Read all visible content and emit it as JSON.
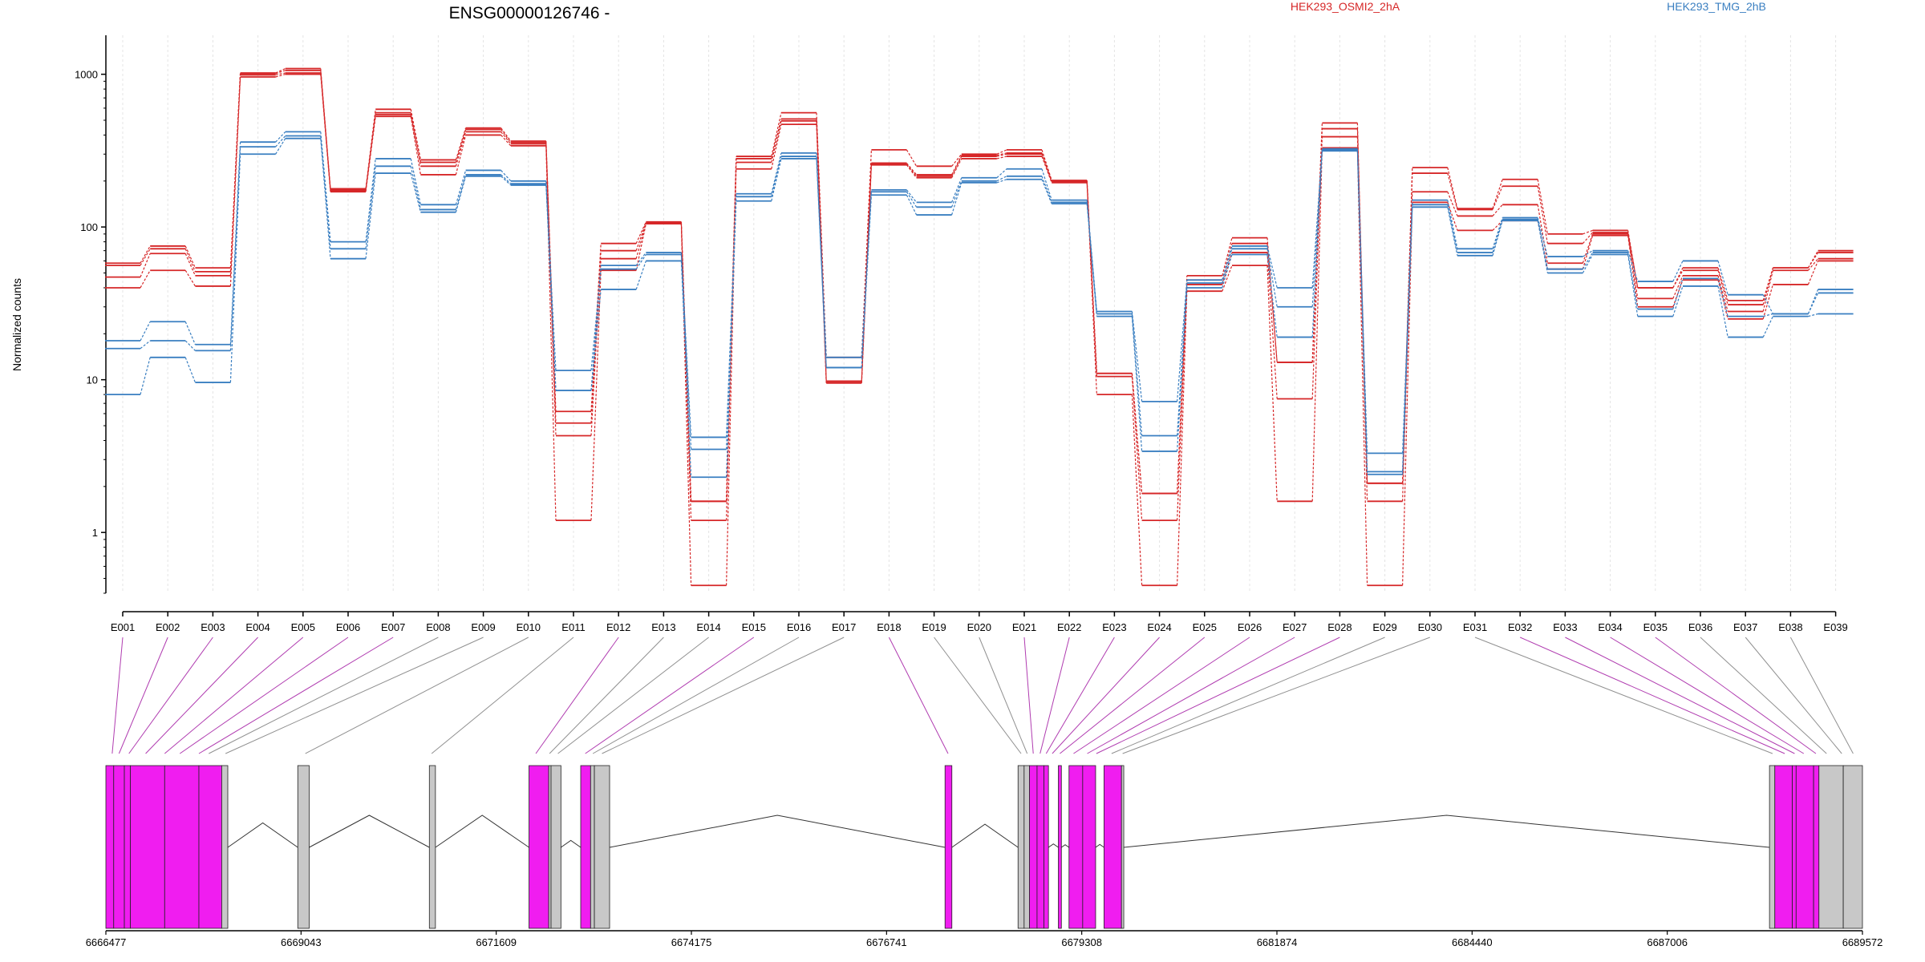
{
  "chart_data": {
    "type": "line",
    "title": "ENSG00000126746 -",
    "ylabel": "Normalized counts",
    "xlabel": "",
    "yscale": "log",
    "ylim": [
      0.4,
      1800
    ],
    "yticks": [
      1,
      10,
      100,
      1000
    ],
    "grid": true,
    "legend_placement": "top",
    "exons": [
      "E001",
      "E002",
      "E003",
      "E004",
      "E005",
      "E006",
      "E007",
      "E008",
      "E009",
      "E010",
      "E011",
      "E012",
      "E013",
      "E014",
      "E015",
      "E016",
      "E017",
      "E018",
      "E019",
      "E020",
      "E021",
      "E022",
      "E023",
      "E024",
      "E025",
      "E026",
      "E027",
      "E028",
      "E029",
      "E030",
      "E031",
      "E032",
      "E033",
      "E034",
      "E035",
      "E036",
      "E037",
      "E038",
      "E039"
    ],
    "groups": [
      {
        "name": "HEK293_OSMI2_2hA",
        "color": "#d62728"
      },
      {
        "name": "HEK293_TMG_2hB",
        "color": "#3a7fc1"
      }
    ],
    "series": [
      {
        "group": 0,
        "values": [
          40,
          52,
          41,
          960,
          1000,
          170,
          530,
          220,
          400,
          340,
          1.2,
          52,
          105,
          0.45,
          240,
          470,
          9.5,
          255,
          210,
          280,
          290,
          195,
          8,
          0.45,
          38,
          56,
          1.6,
          330,
          0.45,
          145,
          95,
          110,
          53,
          88,
          30,
          45,
          25,
          42,
          60
        ]
      },
      {
        "group": 0,
        "values": [
          47,
          67,
          48,
          990,
          1020,
          172,
          545,
          250,
          420,
          350,
          4.3,
          62,
          106,
          1.2,
          265,
          495,
          9.6,
          258,
          215,
          290,
          300,
          198,
          10.5,
          1.2,
          42,
          68,
          7.5,
          390,
          1.6,
          170,
          118,
          140,
          58,
          90,
          34,
          48,
          28,
          52,
          62
        ]
      },
      {
        "group": 0,
        "values": [
          56,
          72,
          51,
          1010,
          1060,
          175,
          560,
          265,
          435,
          358,
          5.2,
          70,
          107,
          1.6,
          280,
          510,
          9.8,
          262,
          220,
          295,
          305,
          200,
          11,
          1.8,
          45,
          78,
          13,
          440,
          2.1,
          225,
          130,
          185,
          78,
          92,
          40,
          52,
          31,
          54,
          68
        ]
      },
      {
        "group": 0,
        "values": [
          58,
          75,
          54,
          1020,
          1090,
          178,
          590,
          275,
          445,
          365,
          6.2,
          78,
          108,
          1.6,
          290,
          560,
          14,
          320,
          250,
          300,
          320,
          202,
          11,
          1.8,
          48,
          85,
          13,
          480,
          2.1,
          245,
          132,
          205,
          90,
          95,
          40,
          54,
          33,
          54,
          70
        ]
      },
      {
        "group": 1,
        "values": [
          8,
          14,
          9.6,
          300,
          380,
          62,
          225,
          125,
          215,
          188,
          8.5,
          39,
          60,
          2.3,
          148,
          280,
          12,
          162,
          120,
          195,
          205,
          142,
          26,
          3.4,
          40,
          66,
          19,
          315,
          2.5,
          135,
          65,
          110,
          50,
          66,
          26,
          41,
          19,
          26,
          27
        ]
      },
      {
        "group": 1,
        "values": [
          16,
          18,
          15.5,
          335,
          395,
          72,
          250,
          130,
          220,
          192,
          11.5,
          53,
          66,
          3.5,
          158,
          290,
          12,
          170,
          135,
          200,
          215,
          145,
          27,
          4.3,
          43,
          72,
          30,
          320,
          2.4,
          140,
          68,
          112,
          53,
          68,
          29,
          46,
          26,
          27,
          37
        ]
      },
      {
        "group": 1,
        "values": [
          18,
          24,
          17,
          360,
          420,
          80,
          280,
          140,
          235,
          200,
          8.5,
          56,
          68,
          4.2,
          165,
          305,
          14,
          175,
          145,
          210,
          240,
          150,
          28,
          7.2,
          45,
          75,
          40,
          325,
          3.3,
          150,
          72,
          115,
          64,
          70,
          44,
          60,
          36,
          27,
          39
        ]
      }
    ],
    "genome": {
      "axis_ticks": [
        "6666477",
        "6669043",
        "6671609",
        "6674175",
        "6676741",
        "6679308",
        "6681874",
        "6684440",
        "6687006",
        "6689572"
      ],
      "range": [
        6666477,
        6689572
      ],
      "feature_colors": {
        "counted": "#f01df0",
        "not_counted": "#c8c8c8"
      },
      "connector_colors": {
        "counted": "#b03cb0",
        "not_counted": "#909090"
      },
      "features": [
        {
          "start": 6666477,
          "end": 6666580,
          "counted": true,
          "exon": 0
        },
        {
          "start": 6666580,
          "end": 6666720,
          "counted": true,
          "exon": 1
        },
        {
          "start": 6666720,
          "end": 6666800,
          "counted": true,
          "exon": 2
        },
        {
          "start": 6666800,
          "end": 6667250,
          "counted": true,
          "exon": 3
        },
        {
          "start": 6667250,
          "end": 6667700,
          "counted": true,
          "exon": 4
        },
        {
          "start": 6667700,
          "end": 6668000,
          "counted": true,
          "exon": 5
        },
        {
          "start": 6668000,
          "end": 6668080,
          "counted": false,
          "exon": 6
        },
        {
          "start": 6669000,
          "end": 6669150,
          "counted": false,
          "exon": 7
        },
        {
          "start": 6670730,
          "end": 6670810,
          "counted": false,
          "exon": 8
        },
        {
          "start": 6672040,
          "end": 6672300,
          "counted": true,
          "exon": 9
        },
        {
          "start": 6672300,
          "end": 6672330,
          "counted": false,
          "exon": 10
        },
        {
          "start": 6672330,
          "end": 6672460,
          "counted": false,
          "exon": 11
        },
        {
          "start": 6672720,
          "end": 6672850,
          "counted": true,
          "exon": 12
        },
        {
          "start": 6672850,
          "end": 6672900,
          "counted": false,
          "exon": 13
        },
        {
          "start": 6672900,
          "end": 6673100,
          "counted": false,
          "exon": 14
        },
        {
          "start": 6677510,
          "end": 6677600,
          "counted": true,
          "exon": 16
        },
        {
          "start": 6678470,
          "end": 6678550,
          "counted": false,
          "exon": 17
        },
        {
          "start": 6678550,
          "end": 6678620,
          "counted": false,
          "exon": 18
        },
        {
          "start": 6678620,
          "end": 6678720,
          "counted": true,
          "exon": 19
        },
        {
          "start": 6678720,
          "end": 6678810,
          "counted": true,
          "exon": 20
        },
        {
          "start": 6678810,
          "end": 6678870,
          "counted": true,
          "exon": 21
        },
        {
          "start": 6679000,
          "end": 6679040,
          "counted": true,
          "exon": 22
        },
        {
          "start": 6679140,
          "end": 6679320,
          "counted": true,
          "exon": 23
        },
        {
          "start": 6679320,
          "end": 6679490,
          "counted": true,
          "exon": 24
        },
        {
          "start": 6679600,
          "end": 6679830,
          "counted": true,
          "exon": 25
        },
        {
          "start": 6679830,
          "end": 6679860,
          "counted": false,
          "exon": 26
        },
        {
          "start": 6688350,
          "end": 6688420,
          "counted": false,
          "exon": 27
        },
        {
          "start": 6688420,
          "end": 6688650,
          "counted": true,
          "exon": 28
        },
        {
          "start": 6688650,
          "end": 6688700,
          "counted": true,
          "exon": 29
        },
        {
          "start": 6688700,
          "end": 6688930,
          "counted": true,
          "exon": 30
        },
        {
          "start": 6688930,
          "end": 6689000,
          "counted": true,
          "exon": 31
        },
        {
          "start": 6689000,
          "end": 6689320,
          "counted": false,
          "exon": 32
        },
        {
          "start": 6689320,
          "end": 6689572,
          "counted": false,
          "exon": 33
        }
      ],
      "links": [
        {
          "exon": 0,
          "pos": 6666560,
          "counted": true
        },
        {
          "exon": 1,
          "pos": 6666650,
          "counted": true
        },
        {
          "exon": 2,
          "pos": 6666780,
          "counted": true
        },
        {
          "exon": 3,
          "pos": 6667000,
          "counted": true
        },
        {
          "exon": 4,
          "pos": 6667250,
          "counted": true
        },
        {
          "exon": 5,
          "pos": 6667450,
          "counted": true
        },
        {
          "exon": 6,
          "pos": 6667700,
          "counted": true
        },
        {
          "exon": 7,
          "pos": 6667830,
          "counted": false
        },
        {
          "exon": 8,
          "pos": 6668050,
          "counted": false
        },
        {
          "exon": 9,
          "pos": 6669100,
          "counted": false
        },
        {
          "exon": 10,
          "pos": 6670760,
          "counted": false
        },
        {
          "exon": 11,
          "pos": 6672130,
          "counted": true
        },
        {
          "exon": 12,
          "pos": 6672310,
          "counted": false
        },
        {
          "exon": 13,
          "pos": 6672420,
          "counted": false
        },
        {
          "exon": 14,
          "pos": 6672780,
          "counted": true
        },
        {
          "exon": 15,
          "pos": 6672880,
          "counted": false
        },
        {
          "exon": 16,
          "pos": 6673000,
          "counted": false
        },
        {
          "exon": 17,
          "pos": 6677550,
          "counted": true
        },
        {
          "exon": 18,
          "pos": 6678510,
          "counted": false
        },
        {
          "exon": 19,
          "pos": 6678590,
          "counted": false
        },
        {
          "exon": 20,
          "pos": 6678670,
          "counted": true
        },
        {
          "exon": 21,
          "pos": 6678760,
          "counted": true
        },
        {
          "exon": 22,
          "pos": 6678840,
          "counted": true
        },
        {
          "exon": 23,
          "pos": 6678920,
          "counted": true
        },
        {
          "exon": 24,
          "pos": 6679020,
          "counted": true
        },
        {
          "exon": 25,
          "pos": 6679200,
          "counted": true
        },
        {
          "exon": 26,
          "pos": 6679380,
          "counted": true
        },
        {
          "exon": 27,
          "pos": 6679500,
          "counted": true
        },
        {
          "exon": 28,
          "pos": 6679700,
          "counted": false
        },
        {
          "exon": 29,
          "pos": 6679845,
          "counted": false
        },
        {
          "exon": 30,
          "pos": 6688390,
          "counted": false
        },
        {
          "exon": 31,
          "pos": 6688550,
          "counted": true
        },
        {
          "exon": 32,
          "pos": 6688680,
          "counted": true
        },
        {
          "exon": 33,
          "pos": 6688800,
          "counted": true
        },
        {
          "exon": 34,
          "pos": 6688960,
          "counted": true
        },
        {
          "exon": 35,
          "pos": 6689100,
          "counted": false
        },
        {
          "exon": 36,
          "pos": 6689300,
          "counted": false
        },
        {
          "exon": 37,
          "pos": 6689450,
          "counted": false
        }
      ]
    }
  }
}
